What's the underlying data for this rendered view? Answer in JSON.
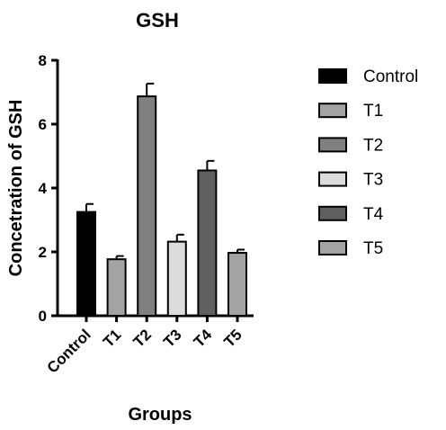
{
  "chart_data": {
    "type": "bar",
    "title": "GSH",
    "xlabel": "Groups",
    "ylabel": "Concetration of GSH",
    "categories": [
      "Control",
      "T1",
      "T2",
      "T3",
      "T4",
      "T5"
    ],
    "values": [
      3.25,
      1.77,
      6.87,
      2.32,
      4.55,
      1.97
    ],
    "errors": [
      0.25,
      0.1,
      0.4,
      0.22,
      0.3,
      0.1
    ],
    "colors": [
      "#000000",
      "#a3a3a3",
      "#808080",
      "#dcdcdc",
      "#606060",
      "#a3a3a3"
    ],
    "ylim": [
      0,
      8
    ],
    "yticks": [
      0,
      2,
      4,
      6,
      8
    ],
    "grid": false,
    "legend_position": "right",
    "legend": [
      "Control",
      "T1",
      "T2",
      "T3",
      "T4",
      "T5"
    ]
  }
}
